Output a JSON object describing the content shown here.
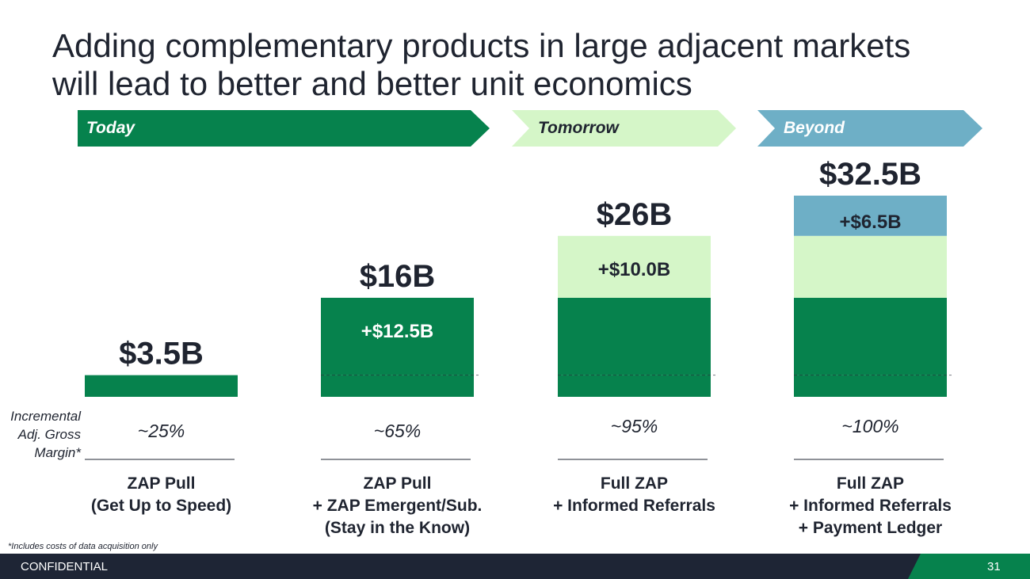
{
  "title": {
    "line1": "Adding complementary products in large adjacent markets",
    "line2": "will lead to better and better unit economics"
  },
  "phases": [
    {
      "label": "Today",
      "color": "#06824d",
      "text_color": "#ffffff"
    },
    {
      "label": "Tomorrow",
      "color": "#d5f6c8",
      "text_color": "#1f2430"
    },
    {
      "label": "Beyond",
      "color": "#6eafc6",
      "text_color": "#ffffff"
    }
  ],
  "chart_data": {
    "type": "bar",
    "stacked": true,
    "categories": [
      [
        "ZAP Pull",
        "(Get Up to Speed)"
      ],
      [
        "ZAP Pull",
        "+ ZAP Emergent/Sub.",
        "(Stay in the Know)"
      ],
      [
        "Full ZAP",
        "+ Informed Referrals"
      ],
      [
        "Full ZAP",
        "+ Informed Referrals",
        "+ Payment Ledger"
      ]
    ],
    "segments": [
      {
        "values": [
          3.5,
          3.5,
          3.5,
          3.5
        ],
        "color": "#06824d"
      },
      {
        "values": [
          0,
          12.5,
          12.5,
          12.5
        ],
        "color": "#06824d",
        "labels": [
          "",
          "+$12.5B",
          "",
          ""
        ]
      },
      {
        "values": [
          0,
          0,
          10.0,
          10.0
        ],
        "color": "#d5f6c8",
        "labels": [
          "",
          "",
          "+$10.0B",
          ""
        ]
      },
      {
        "values": [
          0,
          0,
          0,
          6.5
        ],
        "color": "#6eafc6",
        "labels": [
          "",
          "",
          "",
          "+$6.5B"
        ]
      }
    ],
    "totals": [
      "$3.5B",
      "$16B",
      "$26B",
      "$32.5B"
    ],
    "margins": [
      "~25%",
      "~65%",
      "~95%",
      "~100%"
    ],
    "margin_label": [
      "Incremental",
      "Adj. Gross",
      "Margin*"
    ],
    "baseline_marker": 3.5,
    "ylim": [
      0,
      32.5
    ]
  },
  "footnote": "*Includes costs of data acquisition only",
  "footer": {
    "confidential": "CONFIDENTIAL",
    "page_number": "31",
    "background": "#1e2535",
    "accent": "#06824d"
  }
}
